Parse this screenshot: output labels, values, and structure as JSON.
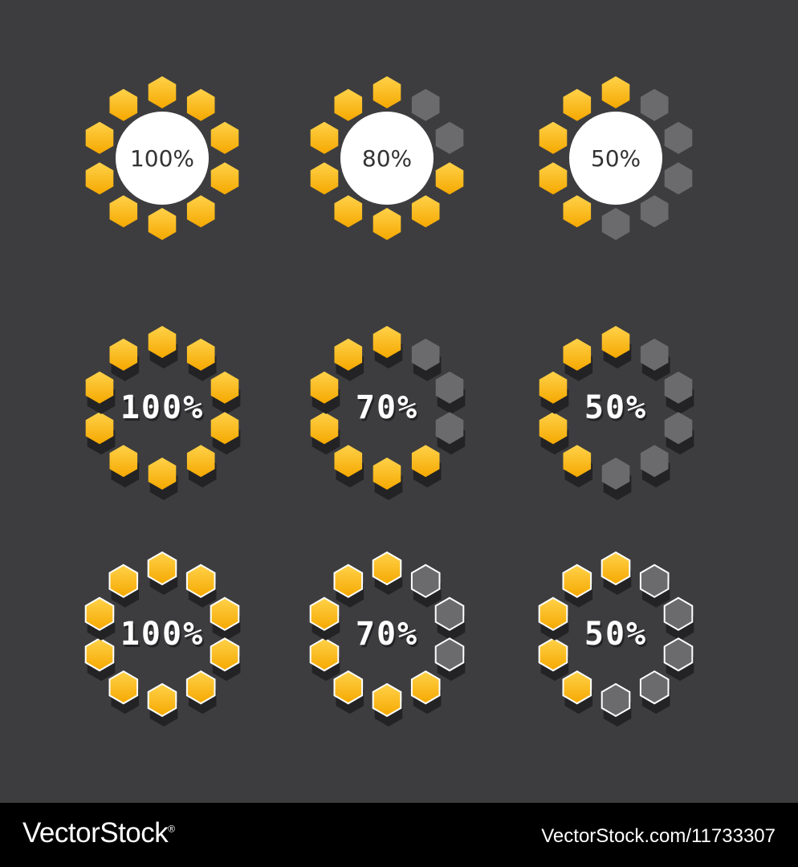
{
  "colors": {
    "background": "#3d3d3f",
    "hex_on_top": "#ffd24a",
    "hex_on_bottom": "#f5a800",
    "hex_off": "#6b6b6d",
    "hex_shadow": "#232325",
    "outline": "#ffffff",
    "footer": "#000000"
  },
  "indicators": [
    {
      "style": "plain-circle",
      "label": "100%",
      "segments": 10,
      "filled": 10
    },
    {
      "style": "plain-circle",
      "label": "80%",
      "segments": 10,
      "filled": 8
    },
    {
      "style": "plain-circle",
      "label": "50%",
      "segments": 10,
      "filled": 5
    },
    {
      "style": "3d",
      "label": "100%",
      "segments": 10,
      "filled": 10
    },
    {
      "style": "3d",
      "label": "70%",
      "segments": 10,
      "filled": 7
    },
    {
      "style": "3d",
      "label": "50%",
      "segments": 10,
      "filled": 5
    },
    {
      "style": "3d-outlined",
      "label": "100%",
      "segments": 10,
      "filled": 10
    },
    {
      "style": "3d-outlined",
      "label": "70%",
      "segments": 10,
      "filled": 7
    },
    {
      "style": "3d-outlined",
      "label": "50%",
      "segments": 10,
      "filled": 5
    }
  ],
  "footer": {
    "brand": "VectorStock",
    "registered": "®",
    "credit": "VectorStock.com/11733307"
  }
}
